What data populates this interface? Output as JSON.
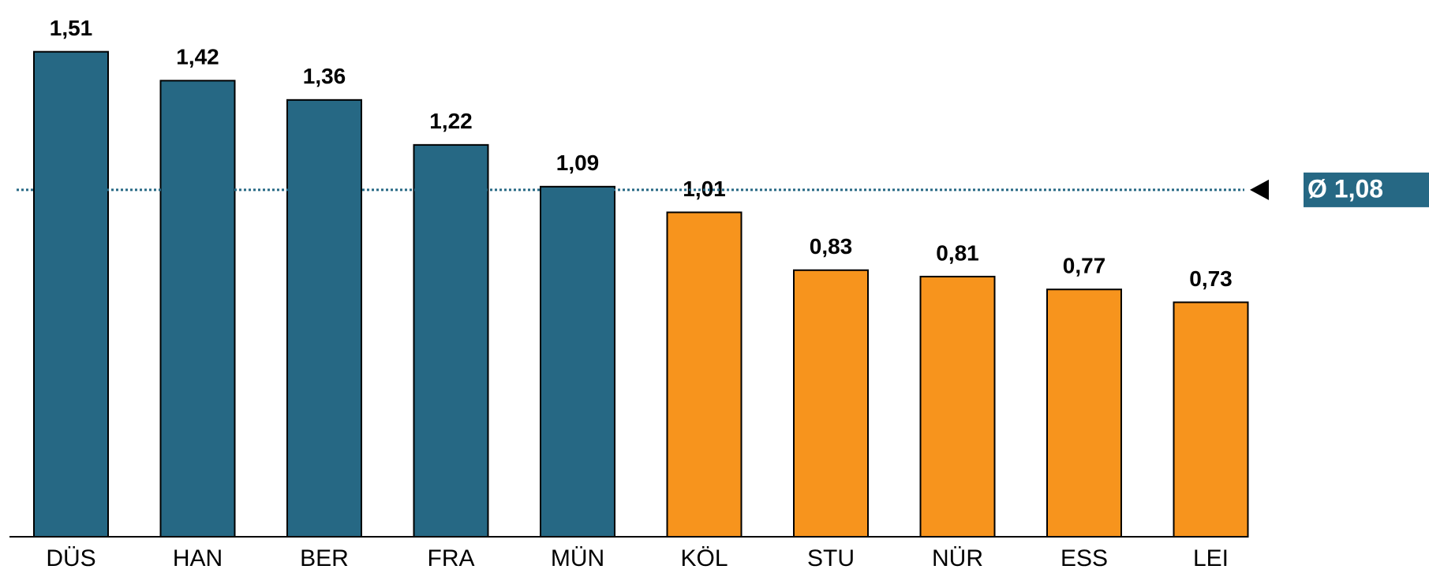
{
  "chart_data": {
    "type": "bar",
    "categories": [
      "DÜS",
      "HAN",
      "BER",
      "FRA",
      "MÜN",
      "KÖL",
      "STU",
      "NÜR",
      "ESS",
      "LEI"
    ],
    "values": [
      1.51,
      1.42,
      1.36,
      1.22,
      1.09,
      1.01,
      0.83,
      0.81,
      0.77,
      0.73
    ],
    "value_labels": [
      "1,51",
      "1,42",
      "1,36",
      "1,22",
      "1,09",
      "1,01",
      "0,83",
      "0,81",
      "0,77",
      "0,73"
    ],
    "colors": [
      "#266884",
      "#266884",
      "#266884",
      "#266884",
      "#266884",
      "#f7941d",
      "#f7941d",
      "#f7941d",
      "#f7941d",
      "#f7941d"
    ],
    "average": {
      "value": 1.08,
      "label": "Ø 1,08",
      "color": "#266884"
    },
    "ylim": [
      0,
      1.6
    ]
  }
}
